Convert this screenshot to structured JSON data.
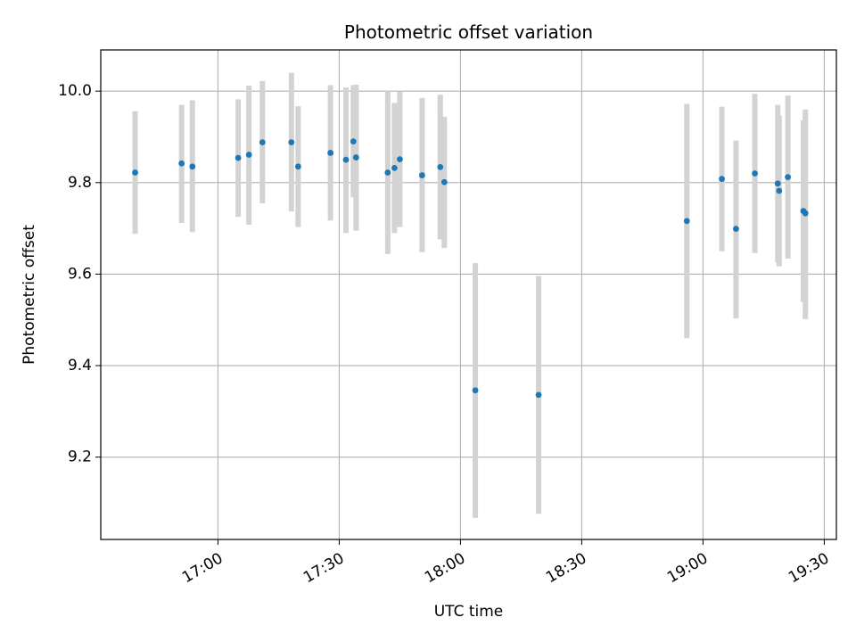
{
  "chart_data": {
    "type": "scatter",
    "title": "Photometric offset variation",
    "xlabel": "UTC time",
    "ylabel": "Photometric offset",
    "x_ticks": [
      "17:00",
      "17:30",
      "18:00",
      "18:30",
      "19:00",
      "19:30"
    ],
    "x_tick_values": [
      "17:00",
      "17:30",
      "18:00",
      "18:30",
      "19:00",
      "19:30"
    ],
    "y_ticks": [
      "9.2",
      "9.4",
      "9.6",
      "9.8",
      "10.0"
    ],
    "y_tick_values": [
      9.2,
      9.4,
      9.6,
      9.8,
      10.0
    ],
    "xlim": [
      "16:31",
      "19:33"
    ],
    "ylim": [
      9.02,
      10.09
    ],
    "grid": true,
    "marker_color": "#1f77b4",
    "errorbar_color": "#d3d3d3",
    "points": [
      {
        "time": "16:39:30",
        "value": 9.822,
        "err_low": 9.688,
        "err_high": 9.956
      },
      {
        "time": "16:51:00",
        "value": 9.842,
        "err_low": 9.712,
        "err_high": 9.97
      },
      {
        "time": "16:53:40",
        "value": 9.835,
        "err_low": 9.692,
        "err_high": 9.98
      },
      {
        "time": "17:05:00",
        "value": 9.854,
        "err_low": 9.725,
        "err_high": 9.982
      },
      {
        "time": "17:07:40",
        "value": 9.861,
        "err_low": 9.708,
        "err_high": 10.012
      },
      {
        "time": "17:11:00",
        "value": 9.888,
        "err_low": 9.755,
        "err_high": 10.022
      },
      {
        "time": "17:18:10",
        "value": 9.888,
        "err_low": 9.737,
        "err_high": 10.04
      },
      {
        "time": "17:19:50",
        "value": 9.835,
        "err_low": 9.703,
        "err_high": 9.967
      },
      {
        "time": "17:27:50",
        "value": 9.865,
        "err_low": 9.717,
        "err_high": 10.013
      },
      {
        "time": "17:31:40",
        "value": 9.85,
        "err_low": 9.69,
        "err_high": 10.008
      },
      {
        "time": "17:33:30",
        "value": 9.89,
        "err_low": 9.768,
        "err_high": 10.013
      },
      {
        "time": "17:34:10",
        "value": 9.855,
        "err_low": 9.695,
        "err_high": 10.014
      },
      {
        "time": "17:42:00",
        "value": 9.822,
        "err_low": 9.644,
        "err_high": 10.0
      },
      {
        "time": "17:43:40",
        "value": 9.832,
        "err_low": 9.69,
        "err_high": 9.974
      },
      {
        "time": "17:45:00",
        "value": 9.851,
        "err_low": 9.703,
        "err_high": 9.999
      },
      {
        "time": "17:50:30",
        "value": 9.816,
        "err_low": 9.648,
        "err_high": 9.985
      },
      {
        "time": "17:55:00",
        "value": 9.834,
        "err_low": 9.676,
        "err_high": 9.992
      },
      {
        "time": "17:56:00",
        "value": 9.801,
        "err_low": 9.657,
        "err_high": 9.944
      },
      {
        "time": "18:03:40",
        "value": 9.346,
        "err_low": 9.067,
        "err_high": 9.624
      },
      {
        "time": "18:19:20",
        "value": 9.336,
        "err_low": 9.076,
        "err_high": 9.596
      },
      {
        "time": "18:56:00",
        "value": 9.716,
        "err_low": 9.46,
        "err_high": 9.972
      },
      {
        "time": "19:04:40",
        "value": 9.808,
        "err_low": 9.65,
        "err_high": 9.966
      },
      {
        "time": "19:08:10",
        "value": 9.699,
        "err_low": 9.503,
        "err_high": 9.892
      },
      {
        "time": "19:12:50",
        "value": 9.82,
        "err_low": 9.646,
        "err_high": 9.994
      },
      {
        "time": "19:18:30",
        "value": 9.798,
        "err_low": 9.626,
        "err_high": 9.97
      },
      {
        "time": "19:18:50",
        "value": 9.782,
        "err_low": 9.617,
        "err_high": 9.947
      },
      {
        "time": "19:21:00",
        "value": 9.812,
        "err_low": 9.634,
        "err_high": 9.99
      },
      {
        "time": "19:24:50",
        "value": 9.738,
        "err_low": 9.539,
        "err_high": 9.936
      },
      {
        "time": "19:25:20",
        "value": 9.733,
        "err_low": 9.502,
        "err_high": 9.96
      }
    ]
  }
}
